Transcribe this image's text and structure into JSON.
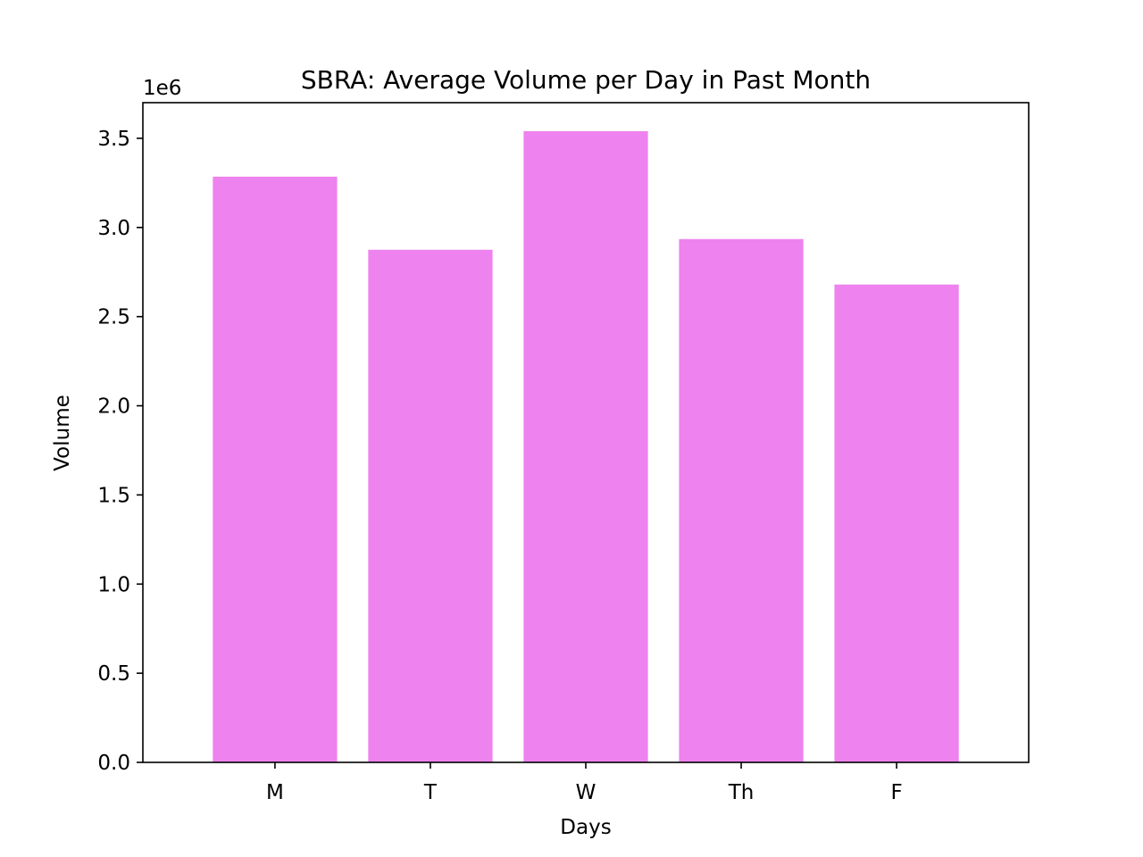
{
  "chart_data": {
    "type": "bar",
    "title": "SBRA: Average Volume per Day in Past Month",
    "xlabel": "Days",
    "ylabel": "Volume",
    "categories": [
      "M",
      "T",
      "W",
      "Th",
      "F"
    ],
    "values": [
      3285000,
      2875000,
      3540000,
      2935000,
      2680000
    ],
    "ylim": [
      0,
      3700000
    ],
    "y_ticks": [
      0,
      500000,
      1000000,
      1500000,
      2000000,
      2500000,
      3000000,
      3500000
    ],
    "y_tick_labels": [
      "0.0",
      "0.5",
      "1.0",
      "1.5",
      "2.0",
      "2.5",
      "3.0",
      "3.5"
    ],
    "offset_text": "1e6",
    "bar_color": "#ee82ee",
    "grid": false,
    "legend": "none"
  }
}
